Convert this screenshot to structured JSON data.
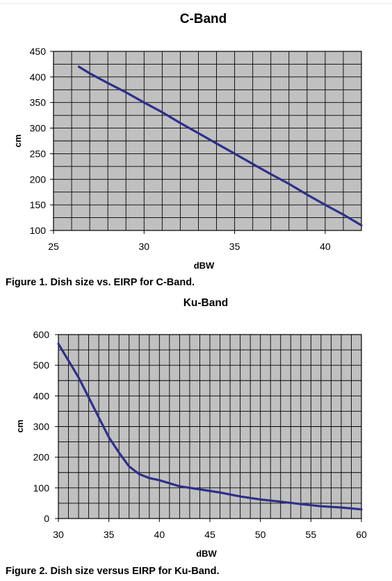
{
  "figures": [
    {
      "caption": "Figure 1. Dish size vs. EIRP for C-Band."
    },
    {
      "caption": "Figure 2. Dish size versus EIRP for Ku-Band."
    }
  ],
  "colors": {
    "plot_bg": "#c0c0c0",
    "grid": "#000000",
    "line": "#2e2e8c"
  },
  "chart_data": [
    {
      "type": "line",
      "title": "C-Band",
      "xlabel": "dBW",
      "ylabel": "cm",
      "xlim": [
        25,
        42
      ],
      "ylim": [
        100,
        450
      ],
      "xticks": [
        25,
        30,
        35,
        40
      ],
      "yticks": [
        100,
        150,
        200,
        250,
        300,
        350,
        400,
        450
      ],
      "x_minor_step": 1,
      "y_minor_step": 25,
      "grid": true,
      "series": [
        {
          "x": [
            26.4,
            27,
            28,
            29,
            30,
            31,
            32,
            33,
            34,
            35,
            36,
            37,
            38,
            39,
            40,
            41,
            42
          ],
          "y": [
            420,
            407,
            388,
            370,
            350,
            331,
            310,
            290,
            270,
            250,
            230,
            210,
            191,
            170,
            150,
            131,
            110
          ]
        }
      ]
    },
    {
      "type": "line",
      "title": "Ku-Band",
      "xlabel": "dBW",
      "ylabel": "cm",
      "xlim": [
        30,
        60
      ],
      "ylim": [
        0,
        600
      ],
      "xticks": [
        30,
        35,
        40,
        45,
        50,
        55,
        60
      ],
      "yticks": [
        0,
        100,
        200,
        300,
        400,
        500,
        600
      ],
      "x_minor_step": 1,
      "y_minor_step": 50,
      "grid": true,
      "series": [
        {
          "x": [
            30,
            31,
            32,
            33,
            34,
            35,
            36,
            37,
            38,
            39,
            40,
            42,
            44,
            46,
            48,
            50,
            52,
            54,
            56,
            58,
            60
          ],
          "y": [
            570,
            515,
            460,
            395,
            330,
            265,
            215,
            170,
            145,
            132,
            125,
            105,
            95,
            85,
            72,
            62,
            55,
            47,
            40,
            36,
            30
          ]
        }
      ]
    }
  ]
}
